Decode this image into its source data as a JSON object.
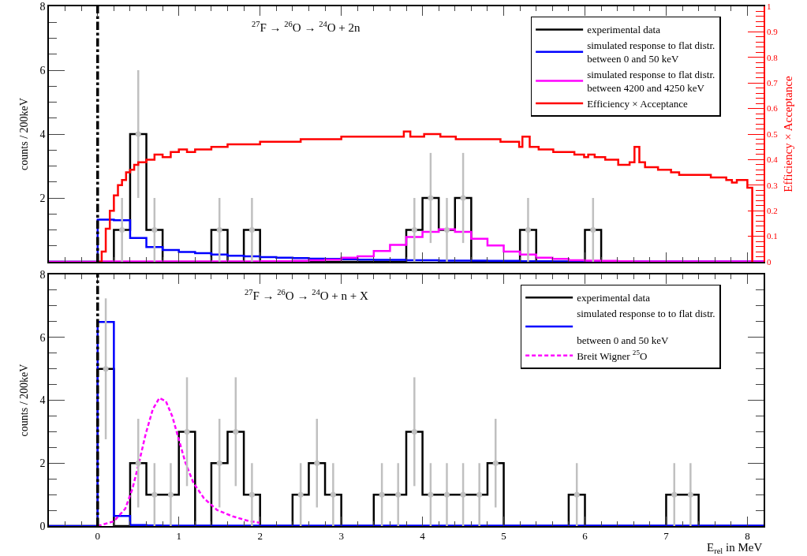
{
  "chart_data": [
    {
      "type": "histogram",
      "ylabel": "counts / 200keV",
      "y2label": "Efficiency × Acceptance",
      "annotations": [
        "$^{27}$F → $^{26}$O → $^{24}$O + 2n"
      ],
      "bins": [
        -0.6,
        -0.4,
        -0.2,
        0.0,
        0.2,
        0.4,
        0.6,
        0.8,
        1.0,
        1.2,
        1.4,
        1.6,
        1.8,
        2.0,
        2.2,
        2.4,
        2.6,
        2.8,
        3.0,
        3.2,
        3.4,
        3.6,
        3.8,
        4.0,
        4.2,
        4.4,
        4.6,
        4.8,
        5.0,
        5.2,
        5.4,
        5.6,
        5.8,
        6.0,
        6.2,
        6.4,
        6.6,
        6.8,
        7.0,
        7.2,
        7.4,
        7.6,
        7.8,
        8.0,
        8.2
      ],
      "series": [
        {
          "type": "scatter",
          "marker": "circle",
          "color": "#c0c0c0",
          "x": [
            0.3,
            0.5,
            0.7,
            1.5,
            1.9,
            3.9,
            4.1,
            4.3,
            4.5,
            5.3,
            6.1
          ],
          "values": [
            1,
            4,
            1,
            1,
            1,
            1,
            2,
            1,
            2,
            1,
            1
          ],
          "errors": [
            1,
            2,
            1,
            1,
            1,
            1,
            1.41,
            1,
            1.41,
            1,
            1
          ]
        },
        {
          "name": "experimental data",
          "color": "#000000",
          "values": [
            0,
            0,
            0,
            0,
            1,
            4,
            1,
            0,
            0,
            0,
            1,
            0,
            1,
            0,
            0,
            0,
            0,
            0,
            0,
            0,
            0,
            0,
            1,
            2,
            1,
            2,
            0,
            0,
            0,
            1,
            0,
            0,
            0,
            1,
            0,
            0,
            0,
            0,
            0,
            0,
            0,
            0,
            0,
            0
          ]
        },
        {
          "name": "simulated response to flat distr.\nbetween 0 and 50 keV",
          "color": "#0000ff",
          "values": [
            0,
            0,
            0,
            1.32,
            1.3,
            0.75,
            0.46,
            0.37,
            0.31,
            0.27,
            0.23,
            0.19,
            0.17,
            0.15,
            0.13,
            0.12,
            0.1,
            0.09,
            0.08,
            0.07,
            0.06,
            0.06,
            0.05,
            0.05,
            0.04,
            0.04,
            0.04,
            0.03,
            0.03,
            0.02,
            0.02,
            0.01,
            0.01,
            0.01,
            0.01,
            0.01,
            0.01,
            0.01,
            0.01,
            0.01,
            0.01,
            0.01,
            0.01,
            0.01
          ]
        },
        {
          "name": "simulated response to flat distr.\nbetween 4200 and 4250 keV",
          "color": "#ff00ff",
          "values": [
            0,
            0,
            0,
            0.01,
            0.01,
            0.01,
            0.01,
            0.01,
            0.01,
            0.01,
            0.01,
            0.01,
            0.01,
            0.02,
            0.02,
            0.03,
            0.05,
            0.07,
            0.13,
            0.17,
            0.34,
            0.53,
            0.78,
            0.94,
            1.02,
            0.94,
            0.72,
            0.51,
            0.32,
            0.23,
            0.13,
            0.09,
            0.05,
            0.04,
            0.03,
            0.02,
            0.01,
            0.01,
            0.01,
            0.01,
            0.01,
            0.01,
            0.01,
            0.01
          ]
        },
        {
          "name": "Efficiency × Acceptance",
          "color": "#ff0000",
          "type": "step",
          "axis": "y2",
          "x": [
            0.0,
            0.05,
            0.1,
            0.15,
            0.2,
            0.25,
            0.3,
            0.35,
            0.4,
            0.45,
            0.5,
            0.6,
            0.7,
            0.8,
            0.9,
            1.0,
            1.1,
            1.2,
            1.4,
            1.6,
            1.8,
            2.0,
            2.2,
            2.5,
            2.8,
            3.0,
            3.3,
            3.6,
            3.77,
            3.85,
            4.02,
            4.22,
            4.41,
            4.63,
            4.96,
            5.19,
            5.23,
            5.32,
            5.43,
            5.61,
            5.87,
            5.99,
            6.04,
            6.12,
            6.25,
            6.41,
            6.55,
            6.61,
            6.67,
            6.74,
            6.9,
            7.06,
            7.16,
            7.38,
            7.55,
            7.74,
            7.81,
            7.87,
            8.0,
            8.06
          ],
          "values": [
            0.0,
            0.04,
            0.13,
            0.2,
            0.26,
            0.3,
            0.32,
            0.35,
            0.36,
            0.38,
            0.39,
            0.4,
            0.42,
            0.41,
            0.43,
            0.44,
            0.43,
            0.44,
            0.45,
            0.46,
            0.46,
            0.47,
            0.47,
            0.48,
            0.48,
            0.49,
            0.49,
            0.49,
            0.51,
            0.49,
            0.5,
            0.49,
            0.48,
            0.48,
            0.47,
            0.45,
            0.49,
            0.45,
            0.44,
            0.43,
            0.42,
            0.41,
            0.42,
            0.41,
            0.4,
            0.38,
            0.39,
            0.45,
            0.39,
            0.37,
            0.36,
            0.35,
            0.34,
            0.34,
            0.33,
            0.32,
            0.31,
            0.32,
            0.29,
            0.0
          ]
        }
      ],
      "xlim": [
        -0.6,
        8.2
      ],
      "xticks": [
        0,
        1,
        2,
        3,
        4,
        5,
        6,
        7,
        8
      ],
      "ylim": [
        0,
        8
      ],
      "yticks": [
        {
          "value": 0,
          "label": null
        },
        2,
        4,
        6,
        8
      ],
      "y2lim": [
        0,
        1
      ],
      "y2ticks": [
        0,
        0.1,
        0.2,
        0.3,
        0.4,
        0.5,
        0.6,
        0.7,
        0.8,
        0.9,
        1
      ],
      "ref_lines": [
        {
          "axis": "x",
          "value": 0,
          "color": "#000000",
          "line_style": "dashdot"
        }
      ],
      "legend": "top right",
      "tick_labels": "y"
    },
    {
      "type": "histogram",
      "xlabel": "E$_{rel}$ in MeV",
      "ylabel": "counts / 200keV",
      "annotations": [
        "$^{27}$F → $^{26}$O → $^{24}$O + n + X"
      ],
      "bins": [
        -0.6,
        -0.4,
        -0.2,
        0.0,
        0.2,
        0.4,
        0.6,
        0.8,
        1.0,
        1.2,
        1.4,
        1.6,
        1.8,
        2.0,
        2.2,
        2.4,
        2.6,
        2.8,
        3.0,
        3.2,
        3.4,
        3.6,
        3.8,
        4.0,
        4.2,
        4.4,
        4.6,
        4.8,
        5.0,
        5.2,
        5.4,
        5.6,
        5.8,
        6.0,
        6.2,
        6.4,
        6.6,
        6.8,
        7.0,
        7.2,
        7.4,
        7.6,
        7.8,
        8.0,
        8.2
      ],
      "series": [
        {
          "type": "scatter",
          "marker": "circle",
          "color": "#c0c0c0",
          "x": [
            0.1,
            0.5,
            0.7,
            0.9,
            1.1,
            1.5,
            1.7,
            1.9,
            2.5,
            2.7,
            2.9,
            3.5,
            3.7,
            3.9,
            4.1,
            4.3,
            4.5,
            4.7,
            4.9,
            5.9,
            7.1,
            7.3
          ],
          "values": [
            5,
            2,
            1,
            1,
            3,
            2,
            3,
            1,
            1,
            2,
            1,
            1,
            1,
            3,
            1,
            1,
            1,
            1,
            2,
            1,
            1,
            1
          ],
          "errors": [
            2.24,
            1.41,
            1,
            1,
            1.73,
            1.41,
            1.73,
            1,
            1,
            1.41,
            1,
            1,
            1,
            1.73,
            1,
            1,
            1,
            1,
            1.41,
            1,
            1,
            1
          ]
        },
        {
          "name": "experimental data",
          "color": "#000000",
          "values": [
            0,
            0,
            0,
            5,
            0,
            2,
            1,
            1,
            3,
            0,
            2,
            3,
            1,
            0,
            0,
            1,
            2,
            1,
            0,
            0,
            1,
            1,
            3,
            1,
            1,
            1,
            1,
            2,
            0,
            0,
            0,
            0,
            1,
            0,
            0,
            0,
            0,
            0,
            1,
            1,
            0,
            0,
            0,
            0
          ]
        },
        {
          "name": "simulated response to to flat distr.\n\nbetween 0 and 50 keV",
          "color": "#0000ff",
          "values": [
            0,
            0,
            0,
            6.49,
            0.32,
            0.03,
            0.02,
            0.01,
            0.01,
            0.01,
            0.01,
            0.01,
            0.01,
            0.01,
            0.01,
            0.01,
            0.01,
            0.01,
            0.01,
            0.01,
            0.01,
            0.01,
            0.01,
            0.01,
            0.01,
            0.01,
            0.01,
            0.01,
            0.01,
            0.01,
            0.01,
            0.01,
            0.01,
            0.01,
            0.01,
            0.01,
            0.01,
            0.01,
            0.01,
            0.01,
            0.01,
            0.01,
            0.01,
            0.01
          ]
        },
        {
          "name": "Breit Wigner $^{25}$O",
          "color": "#ff00ff",
          "type": "line",
          "line_style": "dashed",
          "x": [
            0.0,
            0.2,
            0.34,
            0.43,
            0.51,
            0.59,
            0.68,
            0.76,
            0.84,
            0.92,
            1.0,
            1.08,
            1.18,
            1.31,
            1.47,
            1.66,
            1.86,
            2.0
          ],
          "values": [
            0.0,
            0.15,
            0.55,
            1.2,
            2.02,
            2.91,
            3.72,
            4.07,
            3.97,
            3.48,
            2.75,
            2.02,
            1.37,
            0.88,
            0.51,
            0.31,
            0.16,
            0.1
          ]
        }
      ],
      "xlim": [
        -0.6,
        8.2
      ],
      "xticks": [
        0,
        1,
        2,
        3,
        4,
        5,
        6,
        7,
        8
      ],
      "ylim": [
        0,
        8
      ],
      "yticks": [
        0,
        2,
        4,
        6,
        8
      ],
      "ref_lines": [
        {
          "axis": "x",
          "value": 0,
          "color": "#000000",
          "line_style": "dashdot"
        }
      ],
      "legend": "top right"
    }
  ]
}
